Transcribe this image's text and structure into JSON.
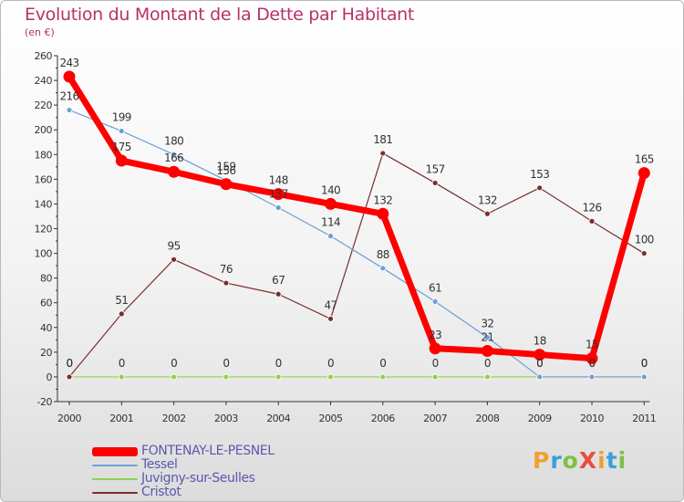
{
  "title": "Evolution du Montant de la Dette par Habitant",
  "subtitle": "(en €)",
  "logo_text": "ProXiti",
  "chart_data": {
    "type": "line",
    "x": [
      "2000",
      "2001",
      "2002",
      "2003",
      "2004",
      "2005",
      "2006",
      "2007",
      "2008",
      "2009",
      "2010",
      "2011"
    ],
    "y_ticks": [
      "260",
      "240",
      "220",
      "200",
      "180",
      "160",
      "140",
      "120",
      "100",
      "80",
      "60",
      "40",
      "20",
      "0",
      "-20"
    ],
    "ylim": [
      -20,
      260
    ],
    "grid": false,
    "legend_position": "bottom-left",
    "series": [
      {
        "name": "FONTENAY-LE-PESNEL",
        "color": "#ff0000",
        "values": [
          243,
          175,
          166,
          156,
          148,
          140,
          132,
          23,
          21,
          18,
          15,
          165
        ],
        "labels": [
          "243",
          "175",
          "166",
          "156",
          "148",
          "140",
          "132",
          "23",
          "21",
          "18",
          "15",
          "165"
        ]
      },
      {
        "name": "Tessel",
        "color": "#6b9fd6",
        "values": [
          216,
          199,
          180,
          159,
          137,
          114,
          88,
          61,
          32,
          0,
          0,
          0
        ],
        "labels": [
          "216",
          "199",
          "180",
          "159",
          "137",
          "114",
          "88",
          "61",
          "32",
          "0",
          "0",
          "0"
        ]
      },
      {
        "name": "Juvigny-sur-Seulles",
        "color": "#8fd14f",
        "values": [
          0,
          0,
          0,
          0,
          0,
          0,
          0,
          0,
          0,
          0,
          0,
          0
        ],
        "labels": [
          "0",
          "0",
          "0",
          "0",
          "0",
          "0",
          "0",
          "0",
          "0",
          "0",
          "0",
          "0"
        ]
      },
      {
        "name": "Cristot",
        "color": "#7a2e2e",
        "values": [
          0,
          51,
          95,
          76,
          67,
          47,
          181,
          157,
          132,
          153,
          126,
          100
        ],
        "labels": [
          "0",
          "51",
          "95",
          "76",
          "67",
          "47",
          "181",
          "157",
          "132",
          "153",
          "126",
          "100"
        ]
      }
    ]
  }
}
